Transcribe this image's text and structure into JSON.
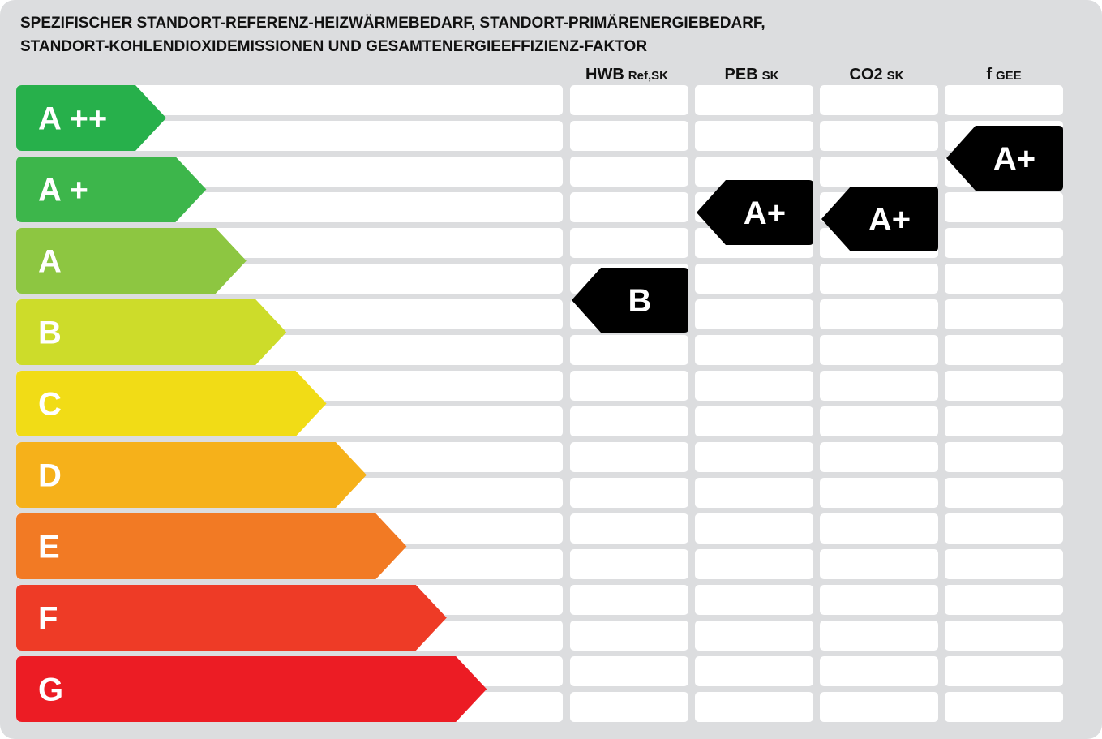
{
  "title": [
    "SPEZIFISCHER STANDORT-REFERENZ-HEIZWÄRMEBEDARF, STANDORT-PRIMÄRENERGIEBEDARF,",
    "STANDORT-KOHLENDIOXIDEMISSIONEN UND GESAMTENERGIEEFFIZIENZ-FAKTOR"
  ],
  "classes": [
    {
      "label": "A ++",
      "color": "#27b04b"
    },
    {
      "label": "A +",
      "color": "#3db64b"
    },
    {
      "label": "A",
      "color": "#8dc641"
    },
    {
      "label": "B",
      "color": "#cddc2a"
    },
    {
      "label": "C",
      "color": "#f1dc16"
    },
    {
      "label": "D",
      "color": "#f6b11a"
    },
    {
      "label": "E",
      "color": "#f27a24"
    },
    {
      "label": "F",
      "color": "#ee3b26"
    },
    {
      "label": "G",
      "color": "#ec1c24"
    }
  ],
  "columns": [
    {
      "name": "HWB",
      "sub": "Ref,SK",
      "rating": "B"
    },
    {
      "name": "PEB",
      "sub": "SK",
      "rating": "A+"
    },
    {
      "name": "CO2",
      "sub": "SK",
      "rating": "A+"
    },
    {
      "name": "f",
      "sub": "GEE",
      "rating": "A+"
    }
  ]
}
